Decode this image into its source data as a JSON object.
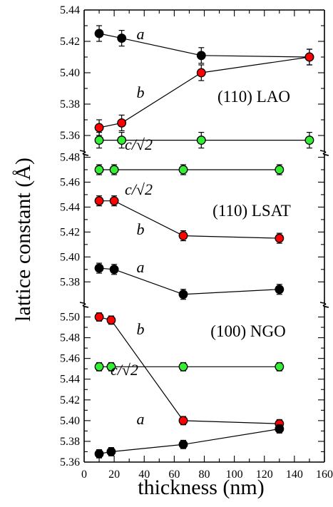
{
  "chart_data": {
    "type": "scatter",
    "xlabel": "thickness (nm)",
    "ylabel": "lattice constant (Å)",
    "xlim": [
      0,
      160
    ],
    "xticks": [
      "0",
      "20",
      "40",
      "60",
      "80",
      "100",
      "120",
      "140",
      "160"
    ],
    "grid": false,
    "legend": "none",
    "colors": {
      "a": "#000000",
      "b": "#ff0000",
      "c": "#33ee33"
    },
    "panels": [
      {
        "label": "(110) LAO",
        "ylim": [
          5.35,
          5.44
        ],
        "yticks": [
          "5.36",
          "5.38",
          "5.40",
          "5.42",
          "5.44"
        ],
        "series": [
          {
            "name": "a",
            "color": "#000000",
            "connected": true,
            "x": [
              10,
              25,
              78,
              150
            ],
            "y": [
              5.425,
              5.422,
              5.411,
              5.41
            ],
            "err": [
              0.005,
              0.005,
              0.005,
              0.005
            ]
          },
          {
            "name": "b",
            "color": "#ff0000",
            "connected": true,
            "x": [
              10,
              25,
              78,
              150
            ],
            "y": [
              5.365,
              5.368,
              5.4,
              5.41
            ],
            "err": [
              0.005,
              0.005,
              0.005,
              0.005
            ]
          },
          {
            "name": "c/√2",
            "color": "#33ee33",
            "connected": true,
            "x": [
              10,
              25,
              78,
              150
            ],
            "y": [
              5.357,
              5.357,
              5.357,
              5.357
            ],
            "err": [
              0.005,
              0.005,
              0.005,
              0.005
            ]
          }
        ]
      },
      {
        "label": "(110) LSAT",
        "ylim": [
          5.363,
          5.482
        ],
        "yticks": [
          "5.38",
          "5.40",
          "5.42",
          "5.44",
          "5.46",
          "5.48"
        ],
        "series": [
          {
            "name": "c/√2",
            "color": "#33ee33",
            "connected": true,
            "x": [
              10,
              20,
              66,
              130
            ],
            "y": [
              5.47,
              5.47,
              5.47,
              5.47
            ],
            "err": [
              0.004,
              0.004,
              0.004,
              0.004
            ]
          },
          {
            "name": "b",
            "color": "#ff0000",
            "connected": true,
            "x": [
              10,
              20,
              66,
              130
            ],
            "y": [
              5.445,
              5.445,
              5.417,
              5.415
            ],
            "err": [
              0.004,
              0.004,
              0.004,
              0.004
            ]
          },
          {
            "name": "a",
            "color": "#000000",
            "connected": true,
            "x": [
              10,
              20,
              66,
              130
            ],
            "y": [
              5.391,
              5.39,
              5.37,
              5.374
            ],
            "err": [
              0.004,
              0.004,
              0.004,
              0.004
            ]
          }
        ]
      },
      {
        "label": "(100) NGO",
        "ylim": [
          5.36,
          5.51
        ],
        "yticks": [
          "5.36",
          "5.38",
          "5.40",
          "5.42",
          "5.44",
          "5.46",
          "5.48",
          "5.50"
        ],
        "series": [
          {
            "name": "b",
            "color": "#ff0000",
            "connected": true,
            "x": [
              10,
              18,
              66,
              130
            ],
            "y": [
              5.5,
              5.497,
              5.4,
              5.397
            ],
            "err": [
              0.004,
              0.004,
              0.004,
              0.004
            ]
          },
          {
            "name": "c/√2",
            "color": "#33ee33",
            "connected": true,
            "x": [
              10,
              18,
              66,
              130
            ],
            "y": [
              5.452,
              5.452,
              5.452,
              5.452
            ],
            "err": [
              0.004,
              0.004,
              0.004,
              0.004
            ]
          },
          {
            "name": "a",
            "color": "#000000",
            "connected": true,
            "x": [
              10,
              18,
              66,
              130
            ],
            "y": [
              5.368,
              5.37,
              5.377,
              5.392
            ],
            "err": [
              0.004,
              0.004,
              0.004,
              0.004
            ]
          }
        ]
      }
    ]
  }
}
